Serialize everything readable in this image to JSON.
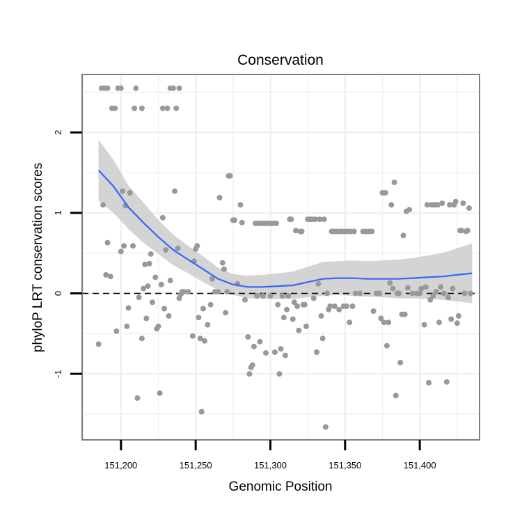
{
  "chart_data": {
    "type": "scatter",
    "title": "Conservation",
    "xlabel": "Genomic Position",
    "ylabel": "phyloP LRT conservation scores",
    "xlim": [
      151174,
      151440
    ],
    "ylim": [
      -1.82,
      2.72
    ],
    "x_ticks": [
      {
        "value": 151200,
        "label": "151,200"
      },
      {
        "value": 151250,
        "label": "151,250"
      },
      {
        "value": 151300,
        "label": "151,300"
      },
      {
        "value": 151350,
        "label": "151,350"
      },
      {
        "value": 151400,
        "label": "151,400"
      }
    ],
    "y_ticks": [
      {
        "value": -1,
        "label": "-1"
      },
      {
        "value": 0,
        "label": "0"
      },
      {
        "value": 1,
        "label": "1"
      },
      {
        "value": 2,
        "label": "2"
      }
    ],
    "grid": true,
    "reference_line": {
      "y": 0,
      "style": "dashed"
    },
    "colors": {
      "points": "#999999",
      "smooth_line": "#3366ff",
      "confidence_band": "#cccccc",
      "panel_border": "#7f7f7f",
      "grid": "#f0f0f0"
    },
    "series": [
      {
        "kind": "points",
        "points": [
          [
            151187,
            2.55
          ],
          [
            151189,
            2.55
          ],
          [
            151191,
            2.55
          ],
          [
            151194,
            2.3
          ],
          [
            151196,
            2.3
          ],
          [
            151198,
            2.55
          ],
          [
            151200,
            2.55
          ],
          [
            151209,
            2.3
          ],
          [
            151210,
            2.55
          ],
          [
            151214,
            2.3
          ],
          [
            151228,
            2.3
          ],
          [
            151231,
            2.3
          ],
          [
            151233,
            2.55
          ],
          [
            151235,
            2.55
          ],
          [
            151237,
            2.3
          ],
          [
            151239,
            2.55
          ],
          [
            151185,
            -0.63
          ],
          [
            151188,
            1.1
          ],
          [
            151190,
            0.23
          ],
          [
            151191,
            0.63
          ],
          [
            151193,
            0.21
          ],
          [
            151197,
            -0.47
          ],
          [
            151200,
            0.52
          ],
          [
            151201,
            1.27
          ],
          [
            151202,
            0.59
          ],
          [
            151203,
            1.09
          ],
          [
            151204,
            -0.41
          ],
          [
            151205,
            -0.18
          ],
          [
            151206,
            1.25
          ],
          [
            151208,
            0.59
          ],
          [
            151211,
            -1.3
          ],
          [
            151212,
            -0.05
          ],
          [
            151214,
            -0.56
          ],
          [
            151215,
            0.06
          ],
          [
            151216,
            0.36
          ],
          [
            151217,
            -0.31
          ],
          [
            151218,
            0.09
          ],
          [
            151219,
            0.37
          ],
          [
            151220,
            0.49
          ],
          [
            151221,
            -0.11
          ],
          [
            151223,
            0.2
          ],
          [
            151224,
            -0.44
          ],
          [
            151225,
            -0.41
          ],
          [
            151226,
            -1.24
          ],
          [
            151227,
            0.11
          ],
          [
            151228,
            0.94
          ],
          [
            151229,
            -0.19
          ],
          [
            151230,
            0.54
          ],
          [
            151232,
            -0.28
          ],
          [
            151233,
            0.16
          ],
          [
            151236,
            1.27
          ],
          [
            151238,
            0.56
          ],
          [
            151239,
            -0.06
          ],
          [
            151240,
            -0.01
          ],
          [
            151241,
            0.02
          ],
          [
            151242,
            0.02
          ],
          [
            151245,
            0.02
          ],
          [
            151248,
            -0.53
          ],
          [
            151249,
            0.4
          ],
          [
            151250,
            0.55
          ],
          [
            151251,
            0.59
          ],
          [
            151252,
            -0.3
          ],
          [
            151253,
            -0.56
          ],
          [
            151254,
            -1.47
          ],
          [
            151255,
            -0.19
          ],
          [
            151256,
            -0.59
          ],
          [
            151258,
            -0.39
          ],
          [
            151260,
            -0.14
          ],
          [
            151261,
            0.18
          ],
          [
            151263,
            0.02
          ],
          [
            151265,
            0.02
          ],
          [
            151266,
            1.19
          ],
          [
            151268,
            0.38
          ],
          [
            151269,
            0.3
          ],
          [
            151270,
            -0.24
          ],
          [
            151271,
            0.02
          ],
          [
            151272,
            1.46
          ],
          [
            151273,
            1.46
          ],
          [
            151275,
            0.91
          ],
          [
            151276,
            0.91
          ],
          [
            151278,
            0.12
          ],
          [
            151280,
            1.1
          ],
          [
            151281,
            0.88
          ],
          [
            151283,
            -0.08
          ],
          [
            151285,
            -0.54
          ],
          [
            151286,
            -1.0
          ],
          [
            151287,
            -0.92
          ],
          [
            151288,
            -0.89
          ],
          [
            151289,
            -0.66
          ],
          [
            151290,
            0.87
          ],
          [
            151291,
            -0.03
          ],
          [
            151292,
            0.87
          ],
          [
            151293,
            -0.6
          ],
          [
            151294,
            0.87
          ],
          [
            151295,
            -0.03
          ],
          [
            151296,
            0.87
          ],
          [
            151297,
            -0.74
          ],
          [
            151298,
            0.87
          ],
          [
            151299,
            0.87
          ],
          [
            151300,
            -0.03
          ],
          [
            151301,
            0.87
          ],
          [
            151302,
            0.87
          ],
          [
            151303,
            -0.73
          ],
          [
            151304,
            0.87
          ],
          [
            151305,
            -0.14
          ],
          [
            151306,
            -1.0
          ],
          [
            151307,
            -0.69
          ],
          [
            151308,
            -0.03
          ],
          [
            151309,
            -0.3
          ],
          [
            151310,
            -0.77
          ],
          [
            151311,
            -0.2
          ],
          [
            151312,
            -0.03
          ],
          [
            151313,
            0.92
          ],
          [
            151314,
            0.92
          ],
          [
            151315,
            -0.32
          ],
          [
            151316,
            -0.11
          ],
          [
            151317,
            0.78
          ],
          [
            151318,
            -0.16
          ],
          [
            151319,
            -0.46
          ],
          [
            151320,
            0.77
          ],
          [
            151321,
            0.77
          ],
          [
            151322,
            -0.14
          ],
          [
            151323,
            -0.14
          ],
          [
            151324,
            -0.41
          ],
          [
            151325,
            0.92
          ],
          [
            151326,
            0.92
          ],
          [
            151327,
            0.92
          ],
          [
            151328,
            0.92
          ],
          [
            151329,
            -0.06
          ],
          [
            151330,
            0.92
          ],
          [
            151331,
            -0.73
          ],
          [
            151332,
            0.12
          ],
          [
            151333,
            0.92
          ],
          [
            151334,
            -0.28
          ],
          [
            151335,
            -0.56
          ],
          [
            151336,
            0.92
          ],
          [
            151337,
            -1.66
          ],
          [
            151338,
            0.0
          ],
          [
            151339,
            -0.2
          ],
          [
            151340,
            -0.16
          ],
          [
            151341,
            0.77
          ],
          [
            151342,
            0.77
          ],
          [
            151343,
            -0.16
          ],
          [
            151344,
            0.77
          ],
          [
            151345,
            0.77
          ],
          [
            151346,
            -0.2
          ],
          [
            151347,
            0.77
          ],
          [
            151348,
            0.77
          ],
          [
            151349,
            -0.16
          ],
          [
            151350,
            0.77
          ],
          [
            151351,
            -0.16
          ],
          [
            151352,
            0.77
          ],
          [
            151353,
            -0.36
          ],
          [
            151354,
            0.77
          ],
          [
            151355,
            -0.16
          ],
          [
            151356,
            0.77
          ],
          [
            151357,
            0.0
          ],
          [
            151360,
            0.0
          ],
          [
            151362,
            0.77
          ],
          [
            151364,
            0.77
          ],
          [
            151366,
            0.77
          ],
          [
            151368,
            0.77
          ],
          [
            151369,
            -0.22
          ],
          [
            151371,
            0.0
          ],
          [
            151373,
            0.0
          ],
          [
            151374,
            -0.31
          ],
          [
            151375,
            1.25
          ],
          [
            151376,
            -0.36
          ],
          [
            151377,
            1.25
          ],
          [
            151378,
            -0.65
          ],
          [
            151379,
            -0.36
          ],
          [
            151380,
            0.13
          ],
          [
            151381,
            1.1
          ],
          [
            151382,
            0.06
          ],
          [
            151383,
            1.38
          ],
          [
            151384,
            -1.27
          ],
          [
            151385,
            0.0
          ],
          [
            151386,
            0.0
          ],
          [
            151387,
            -0.86
          ],
          [
            151388,
            -0.26
          ],
          [
            151389,
            0.72
          ],
          [
            151390,
            -0.26
          ],
          [
            151391,
            1.02
          ],
          [
            151392,
            0.07
          ],
          [
            151393,
            1.04
          ],
          [
            151395,
            0.0
          ],
          [
            151398,
            0.0
          ],
          [
            151400,
            0.0
          ],
          [
            151401,
            0.06
          ],
          [
            151403,
            -0.39
          ],
          [
            151404,
            0.08
          ],
          [
            151405,
            1.1
          ],
          [
            151406,
            -1.11
          ],
          [
            151407,
            -0.08
          ],
          [
            151408,
            1.1
          ],
          [
            151409,
            -0.03
          ],
          [
            151410,
            1.1
          ],
          [
            151411,
            0.02
          ],
          [
            151412,
            1.1
          ],
          [
            151413,
            -0.36
          ],
          [
            151414,
            0.08
          ],
          [
            151415,
            1.12
          ],
          [
            151416,
            0.0
          ],
          [
            151418,
            -1.1
          ],
          [
            151419,
            -0.05
          ],
          [
            151420,
            1.1
          ],
          [
            151421,
            -0.32
          ],
          [
            151422,
            0.06
          ],
          [
            151423,
            1.1
          ],
          [
            151424,
            1.14
          ],
          [
            151425,
            -0.37
          ],
          [
            151426,
            -0.28
          ],
          [
            151427,
            0.78
          ],
          [
            151428,
            0.78
          ],
          [
            151429,
            1.12
          ],
          [
            151430,
            0.0
          ],
          [
            151431,
            0.77
          ],
          [
            151432,
            0.78
          ],
          [
            151433,
            1.06
          ],
          [
            151434,
            0.0
          ]
        ]
      },
      {
        "kind": "smooth",
        "x": [
          151185,
          151195,
          151205,
          151215,
          151225,
          151235,
          151245,
          151255,
          151265,
          151275,
          151285,
          151295,
          151305,
          151315,
          151325,
          151335,
          151345,
          151355,
          151365,
          151375,
          151385,
          151395,
          151405,
          151415,
          151425,
          151435
        ],
        "y": [
          1.53,
          1.33,
          1.07,
          0.88,
          0.7,
          0.54,
          0.42,
          0.3,
          0.18,
          0.11,
          0.08,
          0.08,
          0.09,
          0.1,
          0.14,
          0.18,
          0.19,
          0.19,
          0.18,
          0.18,
          0.18,
          0.19,
          0.2,
          0.21,
          0.23,
          0.25
        ],
        "lower": [
          1.15,
          1.0,
          0.8,
          0.63,
          0.49,
          0.35,
          0.25,
          0.14,
          0.04,
          -0.02,
          -0.06,
          -0.07,
          -0.07,
          -0.07,
          -0.05,
          -0.03,
          -0.02,
          -0.03,
          -0.04,
          -0.05,
          -0.06,
          -0.06,
          -0.07,
          -0.08,
          -0.1,
          -0.12
        ],
        "upper": [
          1.91,
          1.66,
          1.34,
          1.13,
          0.91,
          0.73,
          0.59,
          0.46,
          0.32,
          0.24,
          0.22,
          0.23,
          0.25,
          0.27,
          0.33,
          0.39,
          0.4,
          0.41,
          0.4,
          0.41,
          0.42,
          0.44,
          0.47,
          0.5,
          0.56,
          0.62
        ]
      }
    ]
  }
}
